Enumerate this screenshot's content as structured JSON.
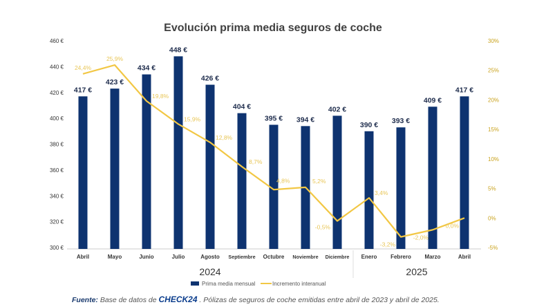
{
  "chart_data": {
    "type": "bar",
    "title": "Evolución prima media seguros de coche",
    "categories": [
      "Abril",
      "Mayo",
      "Junio",
      "Julio",
      "Agosto",
      "Septiembre",
      "Octubre",
      "Noviembre",
      "Diciembre",
      "Enero",
      "Febrero",
      "Marzo",
      "Abril"
    ],
    "year_groups": [
      {
        "label": "2024",
        "count": 9
      },
      {
        "label": "2025",
        "count": 4
      }
    ],
    "series": [
      {
        "name": "Prima media mensual",
        "type": "bar",
        "axis": "left",
        "color": "#0e3370",
        "values": [
          417,
          423,
          434,
          448,
          426,
          404,
          395,
          394,
          402,
          390,
          393,
          409,
          417
        ],
        "labels": [
          "417 €",
          "423 €",
          "434 €",
          "448 €",
          "426 €",
          "404 €",
          "395 €",
          "394 €",
          "402 €",
          "390 €",
          "393 €",
          "409 €",
          "417 €"
        ]
      },
      {
        "name": "Incremento interanual",
        "type": "line",
        "axis": "right",
        "color": "#f2c744",
        "values": [
          24.4,
          25.9,
          19.8,
          15.9,
          12.8,
          8.7,
          4.8,
          5.2,
          -0.5,
          3.4,
          -3.2,
          -2.0,
          0.0
        ],
        "labels": [
          "24,4%",
          "25,9%",
          "19,8%",
          "15,9%",
          "12,8%",
          "8,7%",
          "4,8%",
          "5,2%",
          "-0,5%",
          "3,4%",
          "-3,2%",
          "-2,0%",
          "0,0%"
        ]
      }
    ],
    "left_axis": {
      "ylim": [
        300,
        460
      ],
      "ticks": [
        "300 €",
        "320 €",
        "340 €",
        "360 €",
        "380 €",
        "400 €",
        "420 €",
        "440 €",
        "460 €"
      ]
    },
    "right_axis": {
      "ylim": [
        -5,
        30
      ],
      "ticks": [
        "-5%",
        "0%",
        "5%",
        "10%",
        "15%",
        "20%",
        "25%",
        "30%"
      ]
    },
    "grid": false,
    "legend_position": "bottom"
  },
  "footnote": {
    "label": "Fuente:",
    "text_before": " Base de datos de ",
    "brand": "CHECK24",
    "text_after": " . Pólizas de seguros de coche emitidas entre abril de 2023 y abril de 2025."
  }
}
